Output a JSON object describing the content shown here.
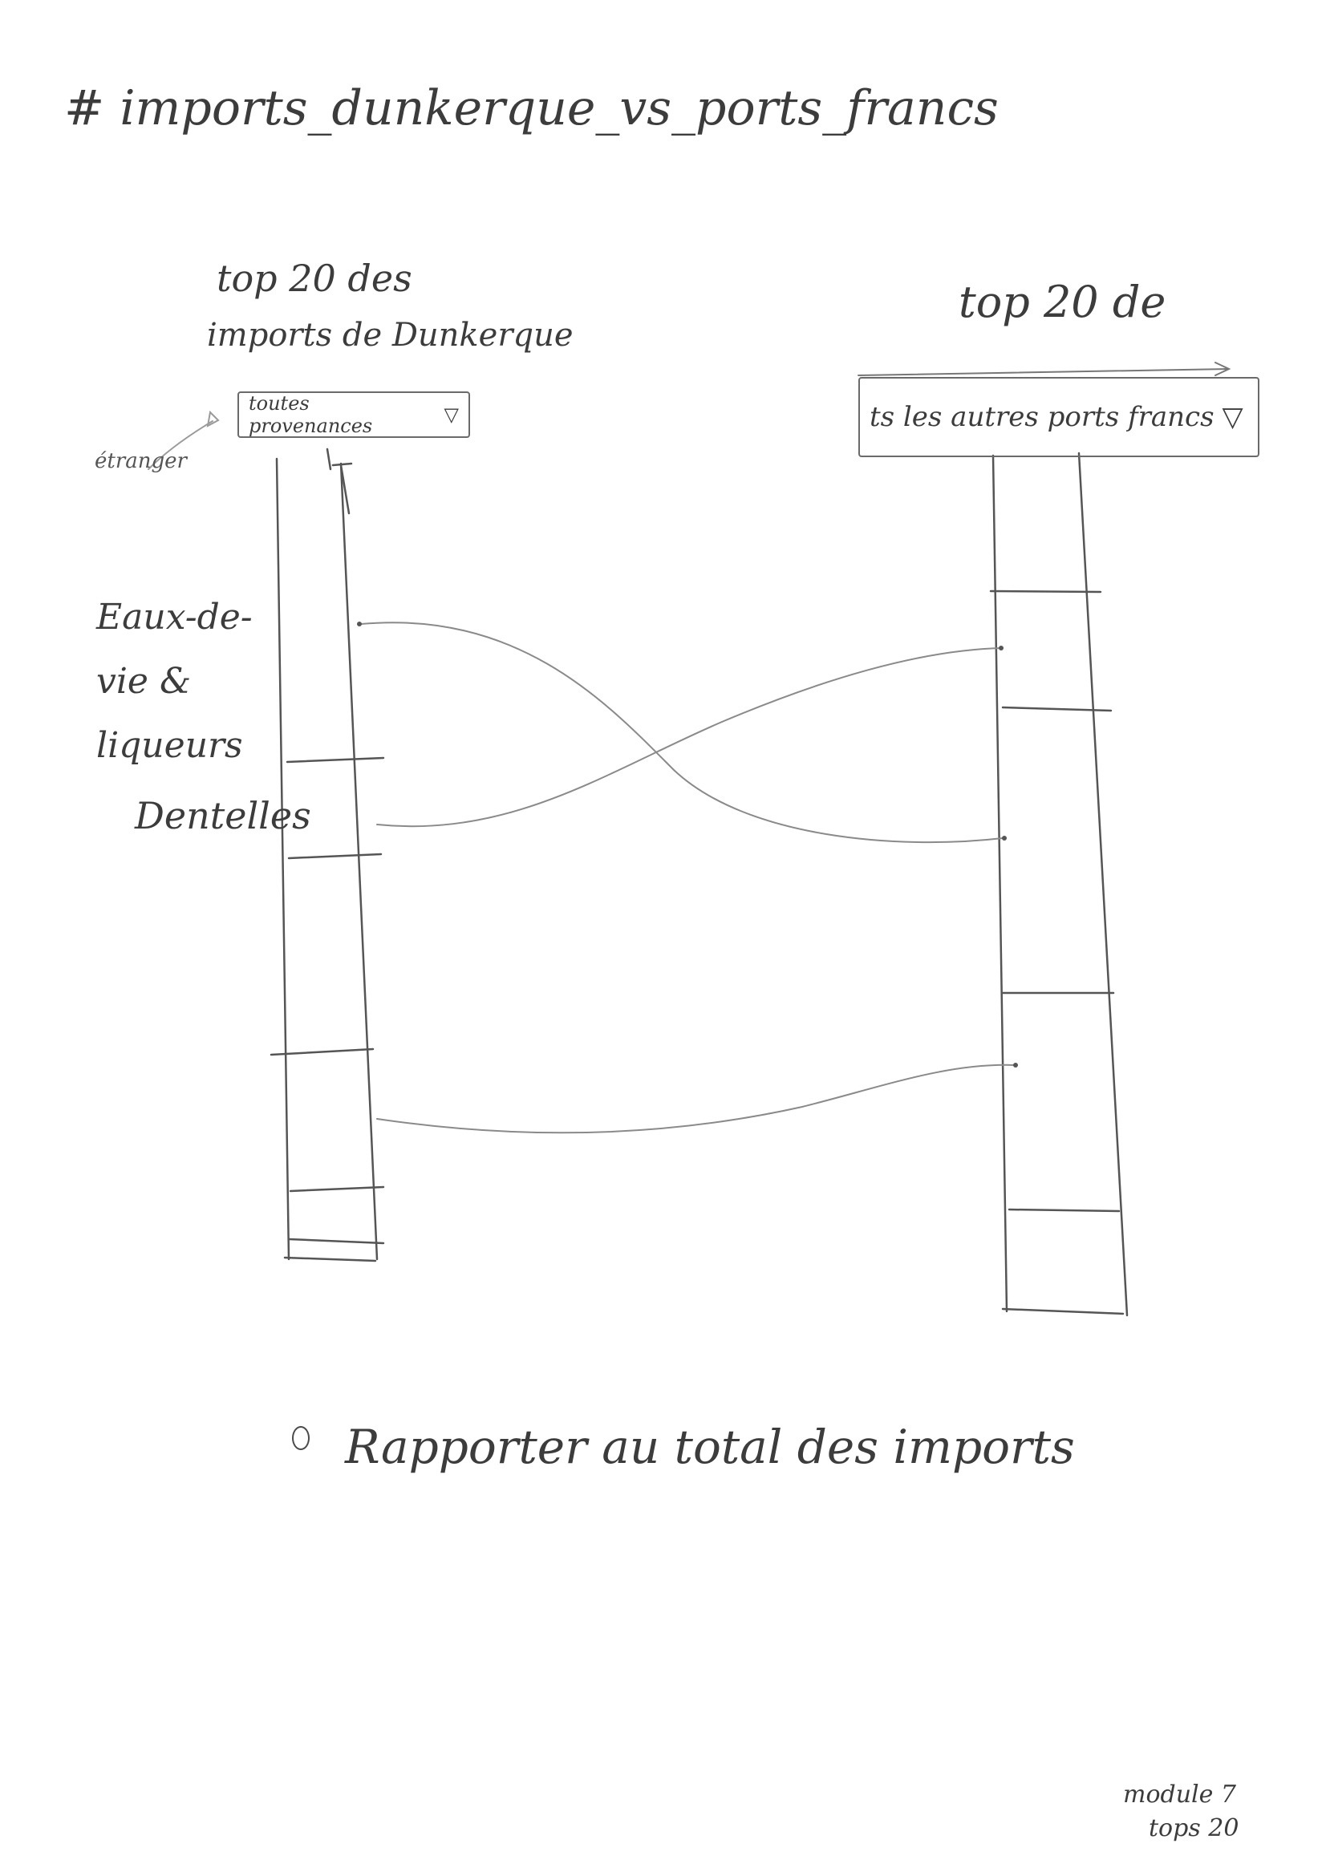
{
  "title": "# imports_dunkerque_vs_ports_francs",
  "left_panel": {
    "heading_line1": "top 20 des",
    "heading_line2": "imports de Dunkerque",
    "select_value": "toutes provenances",
    "select_icon": "dropdown-triangle-icon",
    "annotation": "étranger"
  },
  "right_panel": {
    "heading": "top 20 de",
    "select_value": "ts les autres ports francs",
    "select_icon": "dropdown-triangle-icon"
  },
  "products": {
    "item1": "Eaux-de-vie & liqueurs",
    "item2": "Dentelles"
  },
  "option": {
    "label": "Rapporter au total des imports"
  },
  "footnote": {
    "line1": "module 7",
    "line2": "tops 20"
  },
  "colors": {
    "ink": "#3c3c3c",
    "pencil": "#7a7a7a"
  }
}
